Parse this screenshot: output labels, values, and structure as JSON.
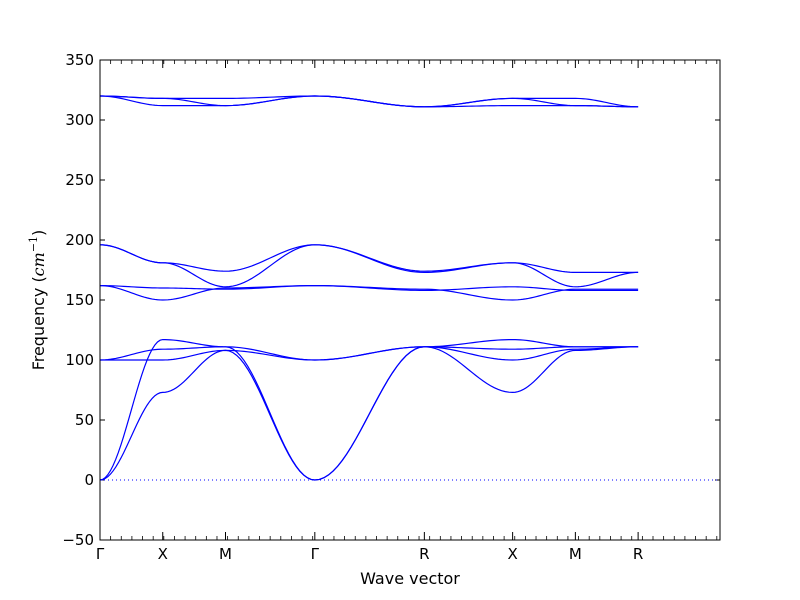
{
  "chart_data": {
    "type": "line",
    "xlabel": "Wave vector",
    "ylabel_main": "Frequency (",
    "ylabel_unit_base": "cm",
    "ylabel_unit_exp": "−1",
    "ylabel_close": ")",
    "ylim": [
      -50,
      350
    ],
    "yticks": [
      -50,
      0,
      50,
      100,
      150,
      200,
      250,
      300,
      350
    ],
    "xlim": [
      0,
      5.83
    ],
    "high_symmetry_points": [
      {
        "label": "Γ",
        "x": 0
      },
      {
        "label": "X",
        "x": 0.59
      },
      {
        "label": "M",
        "x": 1.18
      },
      {
        "label": "Γ",
        "x": 2.02
      },
      {
        "label": "R",
        "x": 3.05
      },
      {
        "label": "X",
        "x": 3.88
      },
      {
        "label": "M",
        "x": 4.47
      },
      {
        "label": "R",
        "x": 5.06
      }
    ],
    "zero_line": {
      "y": 0,
      "style": "dotted"
    },
    "line_color": "#0000ff",
    "grid": false,
    "series": [
      {
        "x": [
          0,
          0.59,
          1.18,
          2.02,
          3.05,
          3.88,
          4.47,
          5.06
        ],
        "values": [
          0,
          117,
          111,
          0,
          111,
          117,
          111,
          111
        ]
      },
      {
        "x": [
          0,
          0.59,
          1.18,
          2.02,
          3.05,
          3.88,
          4.47,
          5.06
        ],
        "values": [
          0,
          73,
          108,
          0,
          111,
          73,
          108,
          111
        ]
      },
      {
        "x": [
          0,
          0.59,
          1.18,
          2.02,
          3.05,
          3.88,
          4.47,
          5.06
        ],
        "values": [
          100,
          100,
          108,
          100,
          111,
          100,
          109,
          111
        ]
      },
      {
        "x": [
          0,
          0.59,
          1.18,
          2.02,
          3.05,
          3.88,
          4.47,
          5.06
        ],
        "values": [
          100,
          109,
          111,
          100,
          111,
          109,
          111,
          111
        ]
      },
      {
        "x": [
          0,
          0.59,
          1.18,
          2.02,
          3.05,
          3.88,
          4.47,
          5.06
        ],
        "values": [
          162,
          150,
          160,
          162,
          159,
          150,
          159,
          159
        ]
      },
      {
        "x": [
          0,
          0.59,
          1.18,
          2.02,
          3.05,
          3.88,
          4.47,
          5.06
        ],
        "values": [
          162,
          160,
          159,
          162,
          158,
          161,
          158,
          158
        ]
      },
      {
        "x": [
          0,
          0.59,
          1.18,
          2.02,
          3.05,
          3.88,
          4.47,
          5.06
        ],
        "values": [
          196,
          181,
          161,
          196,
          173,
          181,
          161,
          173
        ]
      },
      {
        "x": [
          0,
          0.59,
          1.18,
          2.02,
          3.05,
          3.88,
          4.47,
          5.06
        ],
        "values": [
          196,
          181,
          174,
          196,
          174,
          181,
          173,
          173
        ]
      },
      {
        "x": [
          0,
          0.59,
          1.18,
          2.02,
          3.05,
          3.88,
          4.47,
          5.06
        ],
        "values": [
          320,
          312,
          312,
          320,
          311,
          312,
          312,
          311
        ]
      },
      {
        "x": [
          0,
          0.59,
          1.18,
          2.02,
          3.05,
          3.88,
          4.47,
          5.06
        ],
        "values": [
          320,
          318,
          312,
          320,
          311,
          318,
          312,
          311
        ]
      },
      {
        "x": [
          0,
          0.59,
          1.18,
          2.02,
          3.05,
          3.88,
          4.47,
          5.06
        ],
        "values": [
          320,
          318,
          318,
          320,
          311,
          318,
          318,
          311
        ]
      }
    ]
  }
}
